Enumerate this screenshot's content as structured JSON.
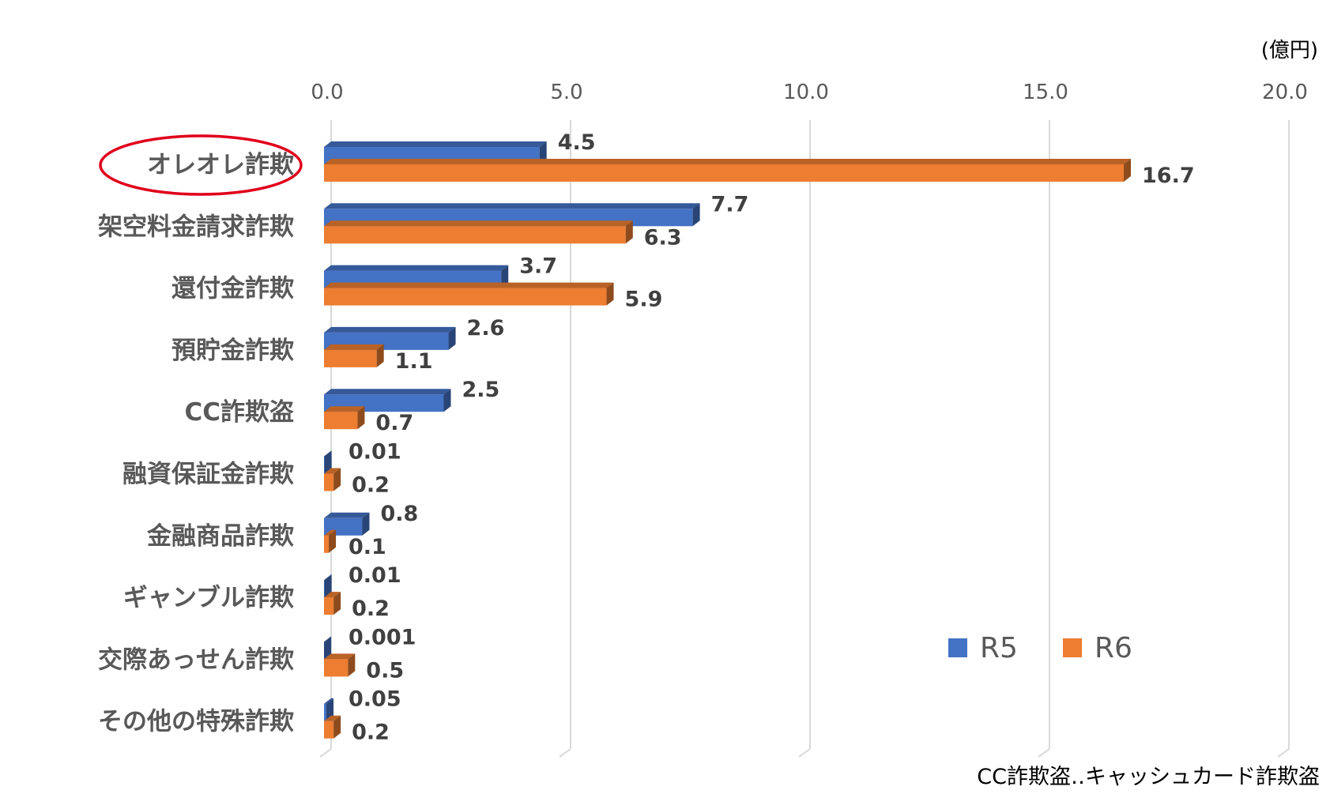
{
  "chart_data": {
    "type": "bar",
    "orientation": "horizontal",
    "unit_label": "(億円)",
    "xlim": [
      0,
      20
    ],
    "x_ticks": [
      "0.0",
      "5.0",
      "10.0",
      "15.0",
      "20.0"
    ],
    "grid": true,
    "categories": [
      "オレオレ詐欺",
      "架空料金請求詐欺",
      "還付金詐欺",
      "預貯金詐欺",
      "CC詐欺盗",
      "融資保証金詐欺",
      "金融商品詐欺",
      "ギャンブル詐欺",
      "交際あっせん詐欺",
      "その他の特殊詐欺"
    ],
    "highlighted_category": "オレオレ詐欺",
    "series": [
      {
        "name": "R5",
        "color": "#4472C4",
        "values": [
          4.5,
          7.7,
          3.7,
          2.6,
          2.5,
          0.01,
          0.8,
          0.01,
          0.001,
          0.05
        ],
        "labels": [
          "4.5",
          "7.7",
          "3.7",
          "2.6",
          "2.5",
          "0.01",
          "0.8",
          "0.01",
          "0.001",
          "0.05"
        ]
      },
      {
        "name": "R6",
        "color": "#ED7D31",
        "values": [
          16.7,
          6.3,
          5.9,
          1.1,
          0.7,
          0.2,
          0.1,
          0.2,
          0.5,
          0.2
        ],
        "labels": [
          "16.7",
          "6.3",
          "5.9",
          "1.1",
          "0.7",
          "0.2",
          "0.1",
          "0.2",
          "0.5",
          "0.2"
        ]
      }
    ],
    "legend_position": "bottom-right",
    "footnote": "CC詐欺盗‥キャッシュカード詐欺盗",
    "highlight_color": "#E0001B"
  }
}
